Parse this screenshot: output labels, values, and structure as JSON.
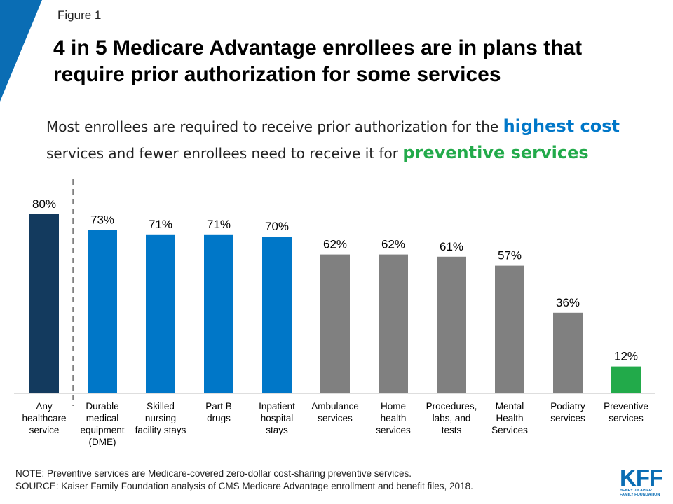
{
  "figure_label": "Figure 1",
  "title": "4 in 5 Medicare Advantage enrollees are in plans that require prior authorization for some services",
  "subtitle": {
    "part1": "Most enrollees are required to receive prior authorization for the ",
    "highlight1": "highest cost",
    "part2": " services and fewer enrollees need to receive it for ",
    "highlight2": "preventive services"
  },
  "colors": {
    "corner_accent": "#0a6db4",
    "dark_navy": "#133a5e",
    "blue": "#0077c8",
    "gray": "#808080",
    "green": "#22aa4a"
  },
  "chart_data": {
    "type": "bar",
    "categories": [
      [
        "Any",
        "healthcare",
        "service"
      ],
      [
        "Durable",
        "medical",
        "equipment",
        "(DME)"
      ],
      [
        "Skilled",
        "nursing",
        "facility stays"
      ],
      [
        "Part B",
        "drugs"
      ],
      [
        "Inpatient",
        "hospital",
        "stays"
      ],
      [
        "Ambulance",
        "services"
      ],
      [
        "Home",
        "health",
        "services"
      ],
      [
        "Procedures,",
        "labs, and",
        "tests"
      ],
      [
        "Mental",
        "Health",
        "Services"
      ],
      [
        "Podiatry",
        "services"
      ],
      [
        "Preventive",
        "services"
      ]
    ],
    "values": [
      80,
      73,
      71,
      71,
      70,
      62,
      62,
      61,
      57,
      36,
      12
    ],
    "value_labels": [
      "80%",
      "73%",
      "71%",
      "71%",
      "70%",
      "62%",
      "62%",
      "61%",
      "57%",
      "36%",
      "12%"
    ],
    "bar_colors": [
      "#133a5e",
      "#0077c8",
      "#0077c8",
      "#0077c8",
      "#0077c8",
      "#808080",
      "#808080",
      "#808080",
      "#808080",
      "#808080",
      "#22aa4a"
    ],
    "ylim": [
      0,
      100
    ],
    "grid": false,
    "divider_after_index": 0
  },
  "footnotes": {
    "note": "NOTE: Preventive services are Medicare-covered zero-dollar cost-sharing preventive services.",
    "source": "SOURCE: Kaiser Family Foundation analysis of CMS Medicare Advantage enrollment and benefit files, 2018."
  },
  "logo": {
    "mark": "KFF",
    "line1": "HENRY J KAISER",
    "line2": "FAMILY FOUNDATION"
  }
}
